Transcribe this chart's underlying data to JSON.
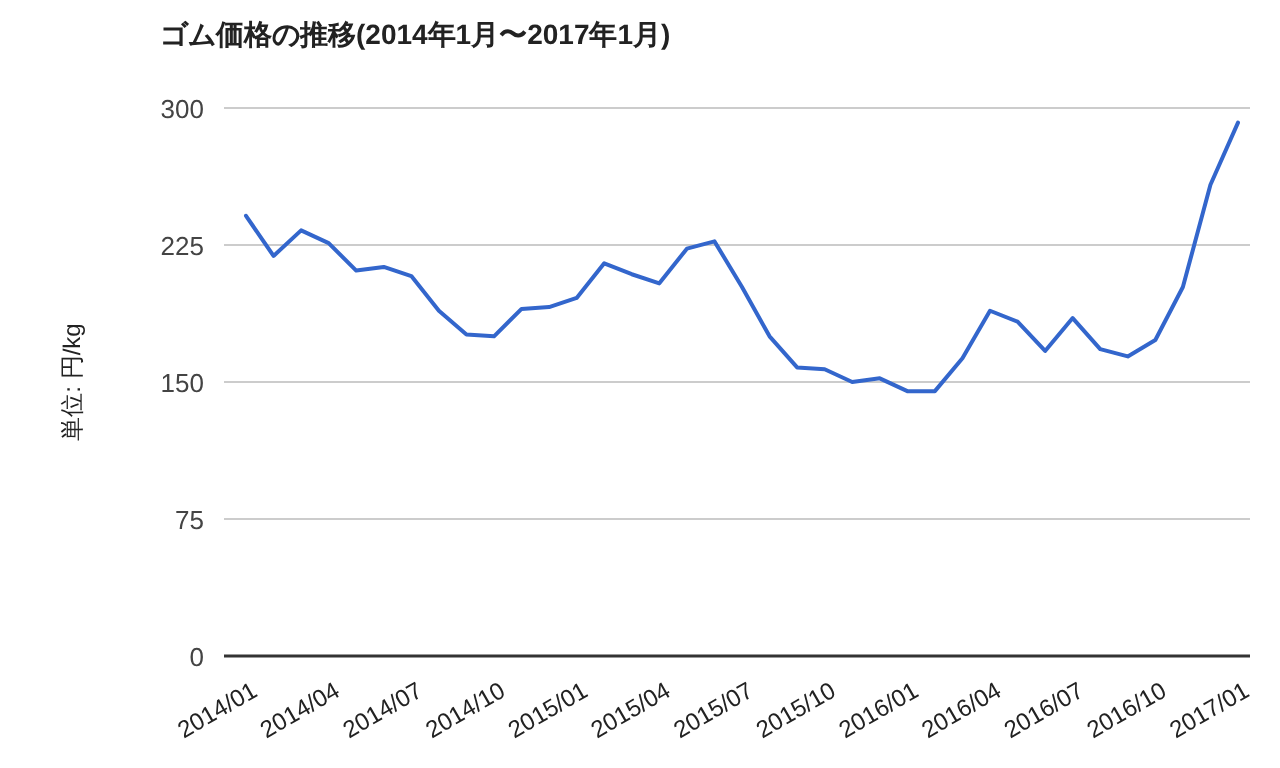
{
  "chart_data": {
    "type": "line",
    "title": "ゴム価格の推移(2014年1月〜2017年1月)",
    "ylabel": "単位: 円/kg",
    "categories": [
      "2014/01",
      null,
      null,
      "2014/04",
      null,
      null,
      "2014/07",
      null,
      null,
      "2014/10",
      null,
      null,
      "2015/01",
      null,
      null,
      "2015/04",
      null,
      null,
      "2015/07",
      null,
      null,
      "2015/10",
      null,
      null,
      "2016/01",
      null,
      null,
      "2016/04",
      null,
      null,
      "2016/07",
      null,
      null,
      "2016/10",
      null,
      null,
      "2017/01"
    ],
    "series": [
      {
        "color": "#3366cc",
        "values": [
          241,
          219,
          233,
          226,
          211,
          213,
          208,
          189,
          176,
          175,
          190,
          191,
          196,
          215,
          209,
          204,
          223,
          227,
          202,
          175,
          158,
          157,
          150,
          152,
          145,
          145,
          163,
          189,
          183,
          167,
          185,
          168,
          164,
          173,
          202,
          258,
          292
        ]
      }
    ],
    "ylim": [
      0,
      300
    ],
    "yticks": [
      0,
      75,
      150,
      225,
      300
    ],
    "grid": "y",
    "marker": "none",
    "line_style": "solid"
  }
}
